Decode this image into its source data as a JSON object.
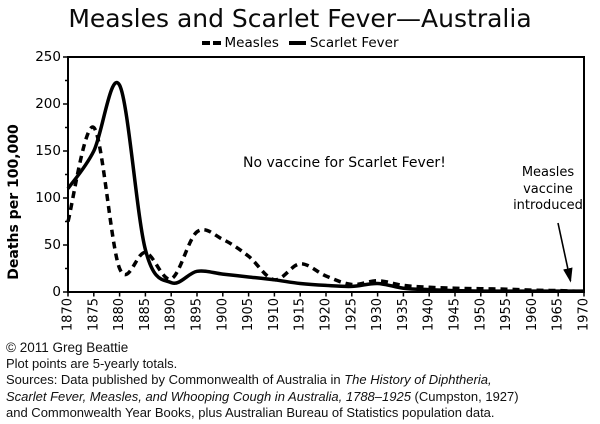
{
  "chart": {
    "title": "Measles and Scarlet Fever—Australia",
    "legend": [
      {
        "label": "Measles",
        "line_style": "dashed"
      },
      {
        "label": "Scarlet Fever",
        "line_style": "solid"
      }
    ],
    "y_axis_label": "Deaths per 100,000",
    "annotations": {
      "no_vaccine": "No vaccine for Scarlet Fever!",
      "measles_vaccine_lines": [
        "Measles",
        "vaccine",
        "introduced"
      ]
    }
  },
  "chart_data": {
    "type": "line",
    "title": "Measles and Scarlet Fever—Australia",
    "xlabel": "",
    "ylabel": "Deaths per 100,000",
    "ylim": [
      0,
      250
    ],
    "y_major_step": 50,
    "y_minor_step": 25,
    "xlim": [
      1870,
      1970
    ],
    "grid": false,
    "legend_position": "top-center",
    "line_color": "#000000",
    "x": [
      1870,
      1875,
      1880,
      1885,
      1890,
      1895,
      1900,
      1905,
      1910,
      1915,
      1920,
      1925,
      1930,
      1935,
      1940,
      1945,
      1950,
      1955,
      1960,
      1965,
      1970
    ],
    "series": [
      {
        "name": "Measles",
        "line_style": "dashed",
        "values": [
          75,
          175,
          25,
          42,
          14,
          64,
          56,
          38,
          13,
          30,
          17,
          8,
          12,
          7,
          5,
          4,
          3.5,
          3,
          2,
          1.5,
          0.5
        ]
      },
      {
        "name": "Scarlet Fever",
        "line_style": "solid",
        "values": [
          110,
          150,
          220,
          45,
          10,
          22,
          19,
          16,
          13,
          9,
          7,
          6,
          9,
          4,
          2.5,
          1.5,
          1,
          1,
          1,
          1,
          1
        ]
      }
    ],
    "annotations": [
      {
        "text": "No vaccine for Scarlet Fever!",
        "x": 1923,
        "y": 137
      },
      {
        "text": "Measles vaccine introduced",
        "x": 1963,
        "y": 110,
        "arrow_to": {
          "x": 1968.5,
          "y": 2
        }
      }
    ]
  },
  "footer": {
    "lines": [
      [
        {
          "text": "© 2011 Greg Beattie",
          "italic": false
        }
      ],
      [
        {
          "text": "Plot points are 5-yearly totals.",
          "italic": false
        }
      ],
      [
        {
          "text": "Sources: Data published by Commonwealth of Australia in ",
          "italic": false
        },
        {
          "text": "The History of Diphtheria,",
          "italic": true
        }
      ],
      [
        {
          "text": "Scarlet Fever, Measles, and Whooping Cough in Australia, 1788–1925",
          "italic": true
        },
        {
          "text": " (Cumpston, 1927)",
          "italic": false
        }
      ],
      [
        {
          "text": "and Commonwealth Year Books, plus Australian Bureau of Statistics population data.",
          "italic": false
        }
      ]
    ]
  }
}
